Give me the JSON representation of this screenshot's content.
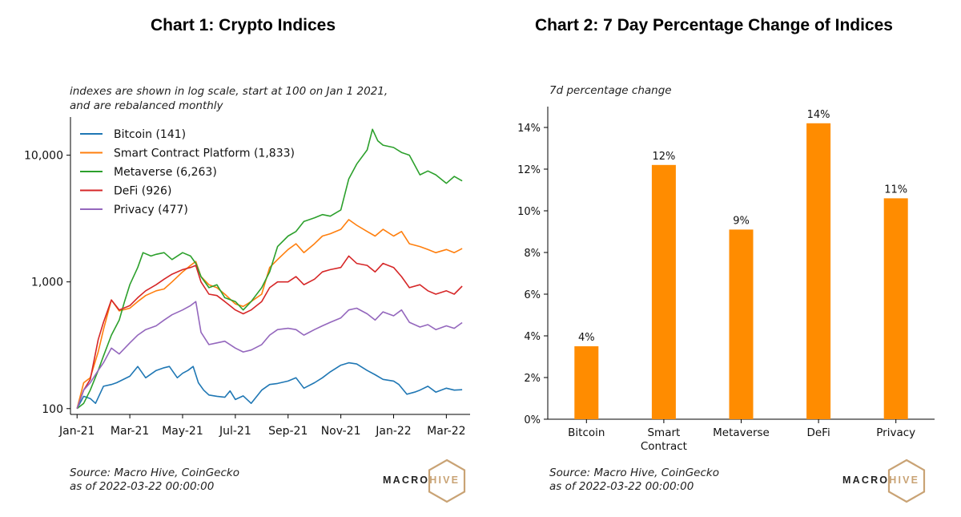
{
  "colors": {
    "bitcoin": "#1f77b4",
    "smart_contract": "#ff7f0e",
    "metaverse": "#2ca02c",
    "defi": "#d62728",
    "privacy": "#9467bd",
    "bar": "#ff8c00",
    "brand_gold": "#c9a375"
  },
  "chart_data": [
    {
      "type": "line",
      "title": "Chart 1: Crypto Indices",
      "subtitle": [
        "indexes are shown in log scale, start at 100 on Jan 1 2021,",
        "and are rebalanced monthly"
      ],
      "y_scale": "log",
      "ylim": [
        90,
        20000
      ],
      "y_ticks": [
        100,
        1000,
        10000
      ],
      "y_tick_labels": [
        "100",
        "1,000",
        "10,000"
      ],
      "x_tick_labels": [
        "Jan-21",
        "Mar-21",
        "May-21",
        "Jul-21",
        "Sep-21",
        "Nov-21",
        "Jan-22",
        "Mar-22"
      ],
      "x_ticks_month": [
        0,
        2,
        4,
        6,
        8,
        10,
        12,
        14
      ],
      "xlim_month": [
        -0.25,
        14.9
      ],
      "legend_position": "top-left",
      "series": [
        {
          "name": "Bitcoin (141)",
          "color_key": "bitcoin",
          "points": [
            [
              0,
              100
            ],
            [
              0.25,
              125
            ],
            [
              0.5,
              120
            ],
            [
              0.7,
              110
            ],
            [
              1.0,
              150
            ],
            [
              1.3,
              155
            ],
            [
              1.5,
              160
            ],
            [
              2.0,
              180
            ],
            [
              2.3,
              215
            ],
            [
              2.6,
              175
            ],
            [
              3.0,
              200
            ],
            [
              3.3,
              210
            ],
            [
              3.5,
              215
            ],
            [
              3.8,
              175
            ],
            [
              4.0,
              190
            ],
            [
              4.2,
              200
            ],
            [
              4.4,
              215
            ],
            [
              4.6,
              160
            ],
            [
              4.8,
              140
            ],
            [
              5.0,
              128
            ],
            [
              5.3,
              125
            ],
            [
              5.6,
              123
            ],
            [
              5.8,
              138
            ],
            [
              6.0,
              118
            ],
            [
              6.3,
              126
            ],
            [
              6.6,
              110
            ],
            [
              7.0,
              140
            ],
            [
              7.3,
              155
            ],
            [
              7.6,
              158
            ],
            [
              8.0,
              165
            ],
            [
              8.3,
              175
            ],
            [
              8.6,
              145
            ],
            [
              9.0,
              160
            ],
            [
              9.3,
              175
            ],
            [
              9.6,
              195
            ],
            [
              10.0,
              220
            ],
            [
              10.3,
              230
            ],
            [
              10.6,
              225
            ],
            [
              11.0,
              200
            ],
            [
              11.3,
              185
            ],
            [
              11.6,
              170
            ],
            [
              12.0,
              165
            ],
            [
              12.2,
              155
            ],
            [
              12.5,
              130
            ],
            [
              12.8,
              135
            ],
            [
              13.0,
              140
            ],
            [
              13.3,
              150
            ],
            [
              13.6,
              135
            ],
            [
              14.0,
              145
            ],
            [
              14.3,
              140
            ],
            [
              14.6,
              141
            ]
          ]
        },
        {
          "name": "Smart Contract Platform (1,833)",
          "color_key": "smart_contract",
          "points": [
            [
              0,
              100
            ],
            [
              0.25,
              160
            ],
            [
              0.5,
              175
            ],
            [
              0.8,
              280
            ],
            [
              1.0,
              420
            ],
            [
              1.3,
              720
            ],
            [
              1.6,
              590
            ],
            [
              2.0,
              620
            ],
            [
              2.3,
              700
            ],
            [
              2.6,
              780
            ],
            [
              3.0,
              850
            ],
            [
              3.3,
              880
            ],
            [
              3.6,
              1000
            ],
            [
              4.0,
              1200
            ],
            [
              4.3,
              1350
            ],
            [
              4.5,
              1450
            ],
            [
              4.7,
              1100
            ],
            [
              5.0,
              950
            ],
            [
              5.3,
              900
            ],
            [
              5.6,
              800
            ],
            [
              6.0,
              670
            ],
            [
              6.3,
              640
            ],
            [
              6.6,
              700
            ],
            [
              7.0,
              800
            ],
            [
              7.3,
              1300
            ],
            [
              7.6,
              1500
            ],
            [
              8.0,
              1800
            ],
            [
              8.3,
              2000
            ],
            [
              8.6,
              1700
            ],
            [
              9.0,
              2000
            ],
            [
              9.3,
              2300
            ],
            [
              9.6,
              2400
            ],
            [
              10.0,
              2600
            ],
            [
              10.3,
              3100
            ],
            [
              10.6,
              2800
            ],
            [
              11.0,
              2500
            ],
            [
              11.3,
              2300
            ],
            [
              11.6,
              2600
            ],
            [
              12.0,
              2300
            ],
            [
              12.3,
              2500
            ],
            [
              12.6,
              2000
            ],
            [
              13.0,
              1900
            ],
            [
              13.3,
              1800
            ],
            [
              13.6,
              1700
            ],
            [
              14.0,
              1800
            ],
            [
              14.3,
              1700
            ],
            [
              14.6,
              1833
            ]
          ]
        },
        {
          "name": "Metaverse (6,263)",
          "color_key": "metaverse",
          "points": [
            [
              0,
              100
            ],
            [
              0.25,
              110
            ],
            [
              0.5,
              140
            ],
            [
              0.8,
              200
            ],
            [
              1.0,
              260
            ],
            [
              1.3,
              380
            ],
            [
              1.6,
              500
            ],
            [
              1.8,
              700
            ],
            [
              2.0,
              950
            ],
            [
              2.3,
              1300
            ],
            [
              2.5,
              1700
            ],
            [
              2.8,
              1600
            ],
            [
              3.0,
              1650
            ],
            [
              3.3,
              1700
            ],
            [
              3.6,
              1500
            ],
            [
              4.0,
              1700
            ],
            [
              4.3,
              1600
            ],
            [
              4.5,
              1400
            ],
            [
              4.7,
              1100
            ],
            [
              5.0,
              900
            ],
            [
              5.3,
              950
            ],
            [
              5.6,
              750
            ],
            [
              6.0,
              700
            ],
            [
              6.3,
              600
            ],
            [
              6.6,
              700
            ],
            [
              7.0,
              900
            ],
            [
              7.3,
              1200
            ],
            [
              7.6,
              1900
            ],
            [
              8.0,
              2300
            ],
            [
              8.3,
              2500
            ],
            [
              8.6,
              3000
            ],
            [
              9.0,
              3200
            ],
            [
              9.3,
              3400
            ],
            [
              9.6,
              3300
            ],
            [
              10.0,
              3700
            ],
            [
              10.3,
              6500
            ],
            [
              10.6,
              8500
            ],
            [
              11.0,
              11000
            ],
            [
              11.2,
              16000
            ],
            [
              11.4,
              13000
            ],
            [
              11.6,
              12000
            ],
            [
              12.0,
              11500
            ],
            [
              12.3,
              10500
            ],
            [
              12.6,
              10000
            ],
            [
              13.0,
              7000
            ],
            [
              13.3,
              7500
            ],
            [
              13.6,
              7000
            ],
            [
              14.0,
              6000
            ],
            [
              14.3,
              6800
            ],
            [
              14.6,
              6263
            ]
          ]
        },
        {
          "name": "DeFi (926)",
          "color_key": "defi",
          "points": [
            [
              0,
              100
            ],
            [
              0.25,
              140
            ],
            [
              0.5,
              170
            ],
            [
              0.8,
              350
            ],
            [
              1.0,
              480
            ],
            [
              1.3,
              720
            ],
            [
              1.6,
              600
            ],
            [
              2.0,
              650
            ],
            [
              2.3,
              750
            ],
            [
              2.6,
              850
            ],
            [
              3.0,
              950
            ],
            [
              3.3,
              1050
            ],
            [
              3.6,
              1150
            ],
            [
              4.0,
              1250
            ],
            [
              4.3,
              1300
            ],
            [
              4.5,
              1350
            ],
            [
              4.7,
              1000
            ],
            [
              5.0,
              800
            ],
            [
              5.3,
              780
            ],
            [
              5.6,
              700
            ],
            [
              6.0,
              600
            ],
            [
              6.3,
              560
            ],
            [
              6.6,
              600
            ],
            [
              7.0,
              700
            ],
            [
              7.3,
              900
            ],
            [
              7.6,
              1000
            ],
            [
              8.0,
              1000
            ],
            [
              8.3,
              1100
            ],
            [
              8.6,
              950
            ],
            [
              9.0,
              1050
            ],
            [
              9.3,
              1200
            ],
            [
              9.6,
              1250
            ],
            [
              10.0,
              1300
            ],
            [
              10.3,
              1600
            ],
            [
              10.6,
              1400
            ],
            [
              11.0,
              1350
            ],
            [
              11.3,
              1200
            ],
            [
              11.6,
              1400
            ],
            [
              12.0,
              1300
            ],
            [
              12.3,
              1100
            ],
            [
              12.6,
              900
            ],
            [
              13.0,
              950
            ],
            [
              13.3,
              850
            ],
            [
              13.6,
              800
            ],
            [
              14.0,
              850
            ],
            [
              14.3,
              800
            ],
            [
              14.6,
              926
            ]
          ]
        },
        {
          "name": "Privacy (477)",
          "color_key": "privacy",
          "points": [
            [
              0,
              100
            ],
            [
              0.25,
              140
            ],
            [
              0.5,
              160
            ],
            [
              0.8,
              200
            ],
            [
              1.0,
              230
            ],
            [
              1.3,
              300
            ],
            [
              1.6,
              270
            ],
            [
              2.0,
              330
            ],
            [
              2.3,
              380
            ],
            [
              2.6,
              420
            ],
            [
              3.0,
              450
            ],
            [
              3.3,
              500
            ],
            [
              3.6,
              550
            ],
            [
              4.0,
              600
            ],
            [
              4.3,
              650
            ],
            [
              4.5,
              700
            ],
            [
              4.7,
              400
            ],
            [
              5.0,
              320
            ],
            [
              5.3,
              330
            ],
            [
              5.6,
              340
            ],
            [
              6.0,
              300
            ],
            [
              6.3,
              280
            ],
            [
              6.6,
              290
            ],
            [
              7.0,
              320
            ],
            [
              7.3,
              380
            ],
            [
              7.6,
              420
            ],
            [
              8.0,
              430
            ],
            [
              8.3,
              420
            ],
            [
              8.6,
              380
            ],
            [
              9.0,
              420
            ],
            [
              9.3,
              450
            ],
            [
              9.6,
              480
            ],
            [
              10.0,
              520
            ],
            [
              10.3,
              600
            ],
            [
              10.6,
              620
            ],
            [
              11.0,
              560
            ],
            [
              11.3,
              500
            ],
            [
              11.6,
              580
            ],
            [
              12.0,
              540
            ],
            [
              12.3,
              600
            ],
            [
              12.6,
              480
            ],
            [
              13.0,
              440
            ],
            [
              13.3,
              460
            ],
            [
              13.6,
              420
            ],
            [
              14.0,
              450
            ],
            [
              14.3,
              430
            ],
            [
              14.6,
              477
            ]
          ]
        }
      ],
      "source": [
        "Source: Macro Hive, CoinGecko",
        "as of 2022-03-22 00:00:00"
      ]
    },
    {
      "type": "bar",
      "title": "Chart 2: 7 Day Percentage Change of Indices",
      "ylabel": "7d percentage change",
      "categories": [
        "Bitcoin",
        "Smart\nContract",
        "Metaverse",
        "DeFi",
        "Privacy"
      ],
      "values": [
        3.5,
        12.2,
        9.1,
        14.2,
        10.6
      ],
      "data_labels": [
        "4%",
        "12%",
        "9%",
        "14%",
        "11%"
      ],
      "ylim": [
        0,
        15
      ],
      "y_ticks": [
        0,
        2,
        4,
        6,
        8,
        10,
        12,
        14
      ],
      "y_tick_labels": [
        "0%",
        "2%",
        "4%",
        "6%",
        "8%",
        "10%",
        "12%",
        "14%"
      ],
      "source": [
        "Source: Macro Hive, CoinGecko",
        "as of 2022-03-22 00:00:00"
      ]
    }
  ],
  "branding": {
    "word1": "MACRO",
    "word2": "HIVE"
  }
}
